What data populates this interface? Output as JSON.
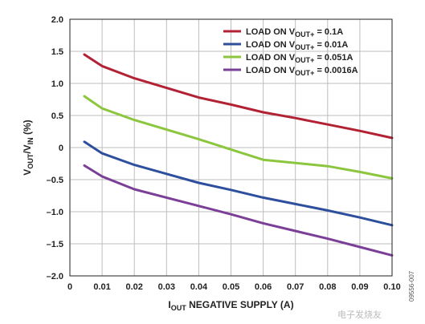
{
  "chart_data": {
    "type": "line",
    "x_axis": {
      "range": [
        0,
        0.1
      ],
      "ticks": [
        0,
        0.01,
        0.02,
        0.03,
        0.04,
        0.05,
        0.06,
        0.07,
        0.08,
        0.09,
        0.1
      ],
      "tick_labels": [
        "0",
        "0.01",
        "0.02",
        "0.03",
        "0.04",
        "0.05",
        "0.06",
        "0.07",
        "0.08",
        "0.09",
        "0.10"
      ],
      "label_sub": "OUT",
      "label_rest": " NEGATIVE SUPPLY (A)"
    },
    "y_axis": {
      "range": [
        -2.0,
        2.0
      ],
      "ticks": [
        -2.0,
        -1.5,
        -1.0,
        -0.5,
        0,
        0.5,
        1.0,
        1.5,
        2.0
      ],
      "tick_labels": [
        "–2.0",
        "–1.5",
        "–1.0",
        "–0.5",
        "0",
        "0.5",
        "1.0",
        "1.5",
        "2.0"
      ],
      "label_v1": "V",
      "label_sub1": "OUT",
      "label_mid": "/V",
      "label_sub2": "IN",
      "label_end": " (%)"
    },
    "grid": true,
    "legend_position": "top-right",
    "legend_prefix": "LOAD ON V",
    "legend_sub": "OUT+",
    "series": [
      {
        "name": "LOAD ON VOUT+ = 0.1A",
        "value_text": " = 0.1A",
        "color": "#b22234",
        "points": [
          [
            0.0045,
            1.45
          ],
          [
            0.01,
            1.27
          ],
          [
            0.02,
            1.08
          ],
          [
            0.03,
            0.93
          ],
          [
            0.04,
            0.78
          ],
          [
            0.05,
            0.67
          ],
          [
            0.06,
            0.55
          ],
          [
            0.07,
            0.46
          ],
          [
            0.08,
            0.36
          ],
          [
            0.09,
            0.26
          ],
          [
            0.1,
            0.15
          ]
        ]
      },
      {
        "name": "LOAD ON VOUT+ = 0.01A",
        "value_text": " = 0.01A",
        "color": "#2e4f9e",
        "points": [
          [
            0.0045,
            0.09
          ],
          [
            0.01,
            -0.09
          ],
          [
            0.02,
            -0.27
          ],
          [
            0.03,
            -0.41
          ],
          [
            0.04,
            -0.55
          ],
          [
            0.05,
            -0.66
          ],
          [
            0.06,
            -0.78
          ],
          [
            0.07,
            -0.88
          ],
          [
            0.08,
            -0.98
          ],
          [
            0.09,
            -1.09
          ],
          [
            0.1,
            -1.21
          ]
        ]
      },
      {
        "name": "LOAD ON VOUT+ = 0.051A",
        "value_text": " = 0.051A",
        "color": "#8cc63f",
        "points": [
          [
            0.0045,
            0.8
          ],
          [
            0.01,
            0.61
          ],
          [
            0.02,
            0.43
          ],
          [
            0.03,
            0.28
          ],
          [
            0.04,
            0.13
          ],
          [
            0.05,
            -0.03
          ],
          [
            0.06,
            -0.19
          ],
          [
            0.08,
            -0.29
          ],
          [
            0.09,
            -0.38
          ],
          [
            0.1,
            -0.48
          ]
        ]
      },
      {
        "name": "LOAD ON VOUT+ = 0.0016A",
        "value_text": " = 0.0016A",
        "color": "#7b3f98",
        "points": [
          [
            0.0045,
            -0.28
          ],
          [
            0.01,
            -0.45
          ],
          [
            0.02,
            -0.65
          ],
          [
            0.03,
            -0.78
          ],
          [
            0.04,
            -0.91
          ],
          [
            0.05,
            -1.04
          ],
          [
            0.06,
            -1.18
          ],
          [
            0.07,
            -1.3
          ],
          [
            0.08,
            -1.42
          ],
          [
            0.09,
            -1.55
          ],
          [
            0.1,
            -1.68
          ]
        ]
      }
    ],
    "figure_id": "09556-007",
    "watermark": "电子发烧友"
  }
}
